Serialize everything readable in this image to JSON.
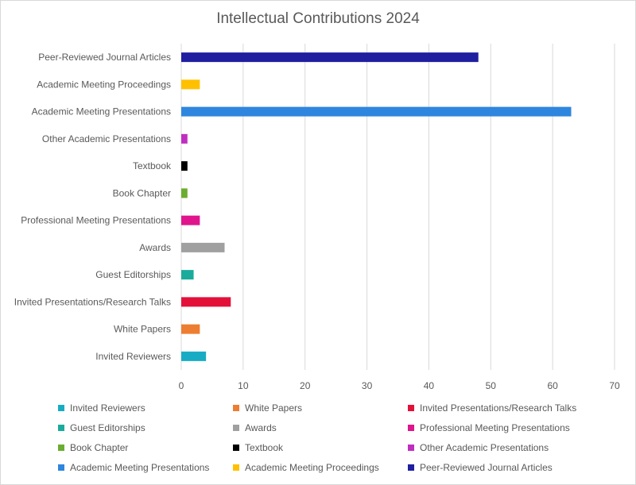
{
  "chart_data": {
    "type": "bar",
    "orientation": "horizontal",
    "title": "Intellectual Contributions 2024",
    "xlabel": "",
    "ylabel": "",
    "xlim": [
      0,
      70
    ],
    "x_ticks": [
      "0",
      "10",
      "20",
      "30",
      "40",
      "50",
      "60",
      "70"
    ],
    "grid": "vertical",
    "legend_position": "bottom",
    "categories": [
      "Peer-Reviewed Journal Articles",
      "Academic Meeting Proceedings",
      "Academic Meeting Presentations",
      "Other Academic Presentations",
      "Textbook",
      "Book Chapter",
      "Professional Meeting Presentations",
      "Awards",
      "Guest Editorships",
      "Invited Presentations/Research Talks",
      "White Papers",
      "Invited Reviewers"
    ],
    "values": [
      48,
      3,
      63,
      1,
      1,
      1,
      3,
      7,
      2,
      8,
      3,
      4
    ],
    "colors": [
      "#1f1fa0",
      "#ffc000",
      "#2e86de",
      "#c02ec0",
      "#000000",
      "#6aad2f",
      "#e0158c",
      "#a0a0a0",
      "#1aab9c",
      "#e3113a",
      "#ed7d31",
      "#18acc4"
    ],
    "legend": [
      {
        "label": "Invited Reviewers",
        "color": "#18acc4"
      },
      {
        "label": "White Papers",
        "color": "#ed7d31"
      },
      {
        "label": "Invited Presentations/Research Talks",
        "color": "#e3113a"
      },
      {
        "label": "Guest Editorships",
        "color": "#1aab9c"
      },
      {
        "label": "Awards",
        "color": "#a0a0a0"
      },
      {
        "label": "Professional Meeting Presentations",
        "color": "#e0158c"
      },
      {
        "label": "Book Chapter",
        "color": "#6aad2f"
      },
      {
        "label": "Textbook",
        "color": "#000000"
      },
      {
        "label": "Other Academic Presentations",
        "color": "#c02ec0"
      },
      {
        "label": "Academic Meeting Presentations",
        "color": "#2e86de"
      },
      {
        "label": "Academic Meeting Proceedings",
        "color": "#ffc000"
      },
      {
        "label": "Peer-Reviewed Journal Articles",
        "color": "#1f1fa0"
      }
    ]
  }
}
